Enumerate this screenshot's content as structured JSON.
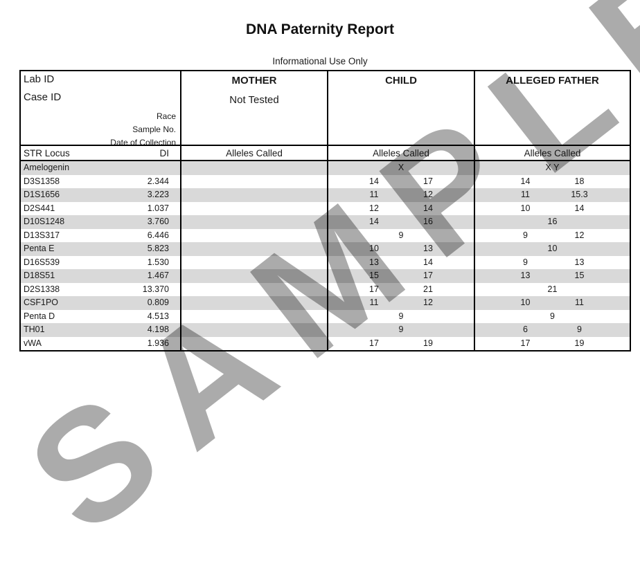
{
  "page": {
    "title": "DNA Paternity Report",
    "subtitle": "Informational Use Only",
    "watermark_text": "SAMPLE"
  },
  "info": {
    "lab_id_label": "Lab ID",
    "case_id_label": "Case ID",
    "race_label": "Race",
    "sample_no_label": "Sample No.",
    "date_of_collection_label": "Date of Collection",
    "mother": {
      "title": "MOTHER",
      "status": "Not Tested"
    },
    "child": {
      "title": "CHILD"
    },
    "alleged_father": {
      "title": "ALLEGED FATHER"
    }
  },
  "table": {
    "headers": {
      "str_locus": "STR Locus",
      "di": "DI",
      "alleles_called": "Alleles Called"
    },
    "rows": [
      {
        "locus": "Amelogenin",
        "di": "",
        "mother": [],
        "child": [
          "X"
        ],
        "father": [
          "X Y"
        ]
      },
      {
        "locus": "D3S1358",
        "di": "2.344",
        "mother": [],
        "child": [
          "14",
          "17"
        ],
        "father": [
          "14",
          "18"
        ]
      },
      {
        "locus": "D1S1656",
        "di": "3.223",
        "mother": [],
        "child": [
          "11",
          "12"
        ],
        "father": [
          "11",
          "15.3"
        ]
      },
      {
        "locus": "D2S441",
        "di": "1.037",
        "mother": [],
        "child": [
          "12",
          "14"
        ],
        "father": [
          "10",
          "14"
        ]
      },
      {
        "locus": "D10S1248",
        "di": "3.760",
        "mother": [],
        "child": [
          "14",
          "16"
        ],
        "father": [
          "16"
        ]
      },
      {
        "locus": "D13S317",
        "di": "6.446",
        "mother": [],
        "child": [
          "9"
        ],
        "father": [
          "9",
          "12"
        ]
      },
      {
        "locus": "Penta E",
        "di": "5.823",
        "mother": [],
        "child": [
          "10",
          "13"
        ],
        "father": [
          "10"
        ]
      },
      {
        "locus": "D16S539",
        "di": "1.530",
        "mother": [],
        "child": [
          "13",
          "14"
        ],
        "father": [
          "9",
          "13"
        ]
      },
      {
        "locus": "D18S51",
        "di": "1.467",
        "mother": [],
        "child": [
          "15",
          "17"
        ],
        "father": [
          "13",
          "15"
        ]
      },
      {
        "locus": "D2S1338",
        "di": "13.370",
        "mother": [],
        "child": [
          "17",
          "21"
        ],
        "father": [
          "21"
        ]
      },
      {
        "locus": "CSF1PO",
        "di": "0.809",
        "mother": [],
        "child": [
          "11",
          "12"
        ],
        "father": [
          "10",
          "11"
        ]
      },
      {
        "locus": "Penta D",
        "di": "4.513",
        "mother": [],
        "child": [
          "9"
        ],
        "father": [
          "9"
        ]
      },
      {
        "locus": "TH01",
        "di": "4.198",
        "mother": [],
        "child": [
          "9"
        ],
        "father": [
          "6",
          "9"
        ]
      },
      {
        "locus": "vWA",
        "di": "1.936",
        "mother": [],
        "child": [
          "17",
          "19"
        ],
        "father": [
          "17",
          "19"
        ]
      }
    ]
  },
  "colors": {
    "row_shading": "#d9d9d9",
    "border": "#000000",
    "watermark": "#ababab"
  }
}
